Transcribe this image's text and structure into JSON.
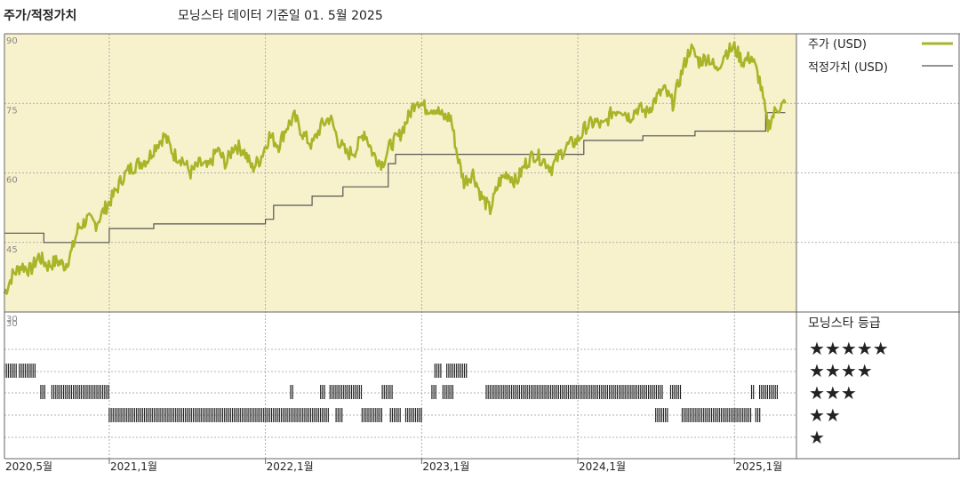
{
  "header": {
    "title": "주가/적정가치",
    "subtitle": "모닝스타 데이터 기준일 01. 5월 2025"
  },
  "colors": {
    "price": "#a9b528",
    "fair_value": "#555555",
    "plot_bg": "#f8f2cc",
    "grid": "#9a9a9a",
    "rating_bar": "#222222"
  },
  "chart_data": [
    {
      "type": "line",
      "title": "",
      "xlabel": "",
      "ylabel": "",
      "x_ticks": [
        "2020,5월",
        "2021,1월",
        "2022,1월",
        "2023,1월",
        "2024,1월",
        "2025,1월"
      ],
      "x_range": [
        "2020-05",
        "2025-05"
      ],
      "ylim": [
        30,
        90
      ],
      "y_ticks": [
        30,
        45,
        60,
        75,
        90
      ],
      "grid": true,
      "legend_position": "right",
      "series": [
        {
          "name": "주가 (USD)",
          "points": [
            [
              "2020-05-01",
              34
            ],
            [
              "2020-05-20",
              38
            ],
            [
              "2020-06-10",
              40
            ],
            [
              "2020-07-01",
              39
            ],
            [
              "2020-07-20",
              42
            ],
            [
              "2020-08-10",
              40
            ],
            [
              "2020-09-01",
              41
            ],
            [
              "2020-09-20",
              40
            ],
            [
              "2020-10-05",
              43
            ],
            [
              "2020-10-20",
              48
            ],
            [
              "2020-11-10",
              50
            ],
            [
              "2020-12-01",
              49
            ],
            [
              "2020-12-20",
              52
            ],
            [
              "2021-01-10",
              55
            ],
            [
              "2021-02-01",
              59
            ],
            [
              "2021-02-20",
              61
            ],
            [
              "2021-03-10",
              62
            ],
            [
              "2021-04-01",
              63
            ],
            [
              "2021-04-20",
              66
            ],
            [
              "2021-05-10",
              68
            ],
            [
              "2021-06-01",
              64
            ],
            [
              "2021-06-20",
              63
            ],
            [
              "2021-07-10",
              60
            ],
            [
              "2021-08-01",
              62
            ],
            [
              "2021-08-20",
              61
            ],
            [
              "2021-09-10",
              65
            ],
            [
              "2021-10-01",
              62
            ],
            [
              "2021-10-20",
              66
            ],
            [
              "2021-11-10",
              65
            ],
            [
              "2021-12-01",
              61
            ],
            [
              "2021-12-20",
              63
            ],
            [
              "2022-01-10",
              68
            ],
            [
              "2022-02-01",
              66
            ],
            [
              "2022-02-20",
              70
            ],
            [
              "2022-03-10",
              72
            ],
            [
              "2022-04-01",
              68
            ],
            [
              "2022-04-20",
              66
            ],
            [
              "2022-05-10",
              70
            ],
            [
              "2022-06-01",
              72
            ],
            [
              "2022-06-20",
              67
            ],
            [
              "2022-07-10",
              64
            ],
            [
              "2022-08-01",
              65
            ],
            [
              "2022-08-20",
              69
            ],
            [
              "2022-09-10",
              64
            ],
            [
              "2022-10-01",
              62
            ],
            [
              "2022-10-20",
              66
            ],
            [
              "2022-11-10",
              68
            ],
            [
              "2022-12-01",
              72
            ],
            [
              "2022-12-20",
              76
            ],
            [
              "2023-01-10",
              74
            ],
            [
              "2023-02-01",
              74
            ],
            [
              "2023-02-20",
              72
            ],
            [
              "2023-03-10",
              72
            ],
            [
              "2023-03-25",
              64
            ],
            [
              "2023-04-10",
              58
            ],
            [
              "2023-05-01",
              60
            ],
            [
              "2023-05-20",
              55
            ],
            [
              "2023-06-10",
              52
            ],
            [
              "2023-07-01",
              58
            ],
            [
              "2023-07-20",
              60
            ],
            [
              "2023-08-10",
              58
            ],
            [
              "2023-09-01",
              62
            ],
            [
              "2023-09-20",
              64
            ],
            [
              "2023-10-10",
              63
            ],
            [
              "2023-11-01",
              61
            ],
            [
              "2023-11-20",
              64
            ],
            [
              "2023-12-10",
              66
            ],
            [
              "2024-01-01",
              67
            ],
            [
              "2024-01-20",
              70
            ],
            [
              "2024-02-10",
              71
            ],
            [
              "2024-03-01",
              70
            ],
            [
              "2024-03-20",
              73
            ],
            [
              "2024-04-10",
              74
            ],
            [
              "2024-05-01",
              72
            ],
            [
              "2024-05-20",
              74
            ],
            [
              "2024-06-10",
              73
            ],
            [
              "2024-07-01",
              76
            ],
            [
              "2024-07-20",
              78
            ],
            [
              "2024-08-10",
              75
            ],
            [
              "2024-09-01",
              82
            ],
            [
              "2024-09-20",
              87
            ],
            [
              "2024-10-10",
              84
            ],
            [
              "2024-11-01",
              85
            ],
            [
              "2024-11-20",
              82
            ],
            [
              "2024-12-10",
              86
            ],
            [
              "2025-01-01",
              87
            ],
            [
              "2025-01-20",
              84
            ],
            [
              "2025-02-10",
              85
            ],
            [
              "2025-03-01",
              80
            ],
            [
              "2025-03-20",
              70
            ],
            [
              "2025-04-10",
              74
            ],
            [
              "2025-04-30",
              75
            ]
          ]
        },
        {
          "name": "적정가치 (USD)",
          "step": true,
          "points": [
            [
              "2020-05-01",
              47
            ],
            [
              "2020-08-01",
              45
            ],
            [
              "2021-01-01",
              48
            ],
            [
              "2021-04-15",
              49
            ],
            [
              "2022-01-01",
              50
            ],
            [
              "2022-01-20",
              53
            ],
            [
              "2022-04-20",
              55
            ],
            [
              "2022-07-01",
              57
            ],
            [
              "2022-10-15",
              62
            ],
            [
              "2022-11-01",
              64
            ],
            [
              "2023-10-01",
              64
            ],
            [
              "2024-01-15",
              67
            ],
            [
              "2024-06-01",
              68
            ],
            [
              "2024-10-01",
              69
            ],
            [
              "2025-03-15",
              73
            ],
            [
              "2025-04-30",
              73
            ]
          ]
        }
      ]
    },
    {
      "type": "bar",
      "title": "모닝스타 등급",
      "rows": [
        "★★★★★",
        "★★★★",
        "★★★",
        "★★",
        "★"
      ],
      "series": [
        {
          "name": "★★★★★",
          "segments": []
        },
        {
          "name": "★★★★",
          "segments": [
            [
              "2020-05-01",
              "2020-06-01"
            ],
            [
              "2020-06-05",
              "2020-07-15"
            ],
            [
              "2023-02-01",
              "2023-02-15"
            ],
            [
              "2023-03-01",
              "2023-04-20"
            ]
          ]
        },
        {
          "name": "★★★",
          "segments": [
            [
              "2020-07-25",
              "2020-08-05"
            ],
            [
              "2020-08-20",
              "2021-01-01"
            ],
            [
              "2022-03-01",
              "2022-03-10"
            ],
            [
              "2022-05-10",
              "2022-05-20"
            ],
            [
              "2022-06-01",
              "2022-08-15"
            ],
            [
              "2022-10-01",
              "2022-10-25"
            ],
            [
              "2023-01-25",
              "2023-02-05"
            ],
            [
              "2023-02-20",
              "2023-03-15"
            ],
            [
              "2023-06-01",
              "2024-07-20"
            ],
            [
              "2024-08-05",
              "2024-08-30"
            ],
            [
              "2025-02-10",
              "2025-02-18"
            ],
            [
              "2025-03-01",
              "2025-04-15"
            ]
          ]
        },
        {
          "name": "★★",
          "segments": [
            [
              "2021-01-01",
              "2022-06-01"
            ],
            [
              "2022-06-15",
              "2022-07-01"
            ],
            [
              "2022-08-15",
              "2022-10-01"
            ],
            [
              "2022-10-20",
              "2022-11-15"
            ],
            [
              "2022-11-25",
              "2023-01-05"
            ],
            [
              "2024-07-01",
              "2024-08-01"
            ],
            [
              "2024-09-01",
              "2025-02-10"
            ],
            [
              "2025-02-20",
              "2025-03-05"
            ]
          ]
        },
        {
          "name": "★",
          "segments": []
        }
      ]
    }
  ]
}
